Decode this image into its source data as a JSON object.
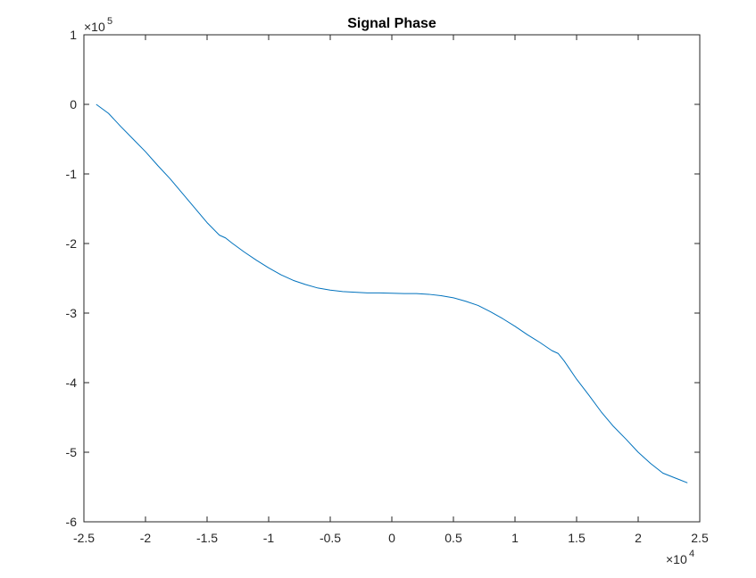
{
  "chart_data": {
    "type": "line",
    "title": "Signal Phase",
    "xlabel": "",
    "ylabel": "",
    "x_multiplier": {
      "base": "×10",
      "exponent": "4"
    },
    "y_multiplier": {
      "base": "×10",
      "exponent": "5"
    },
    "xlim": [
      -2.5,
      2.5
    ],
    "ylim": [
      -6,
      1
    ],
    "xticks": [
      -2.5,
      -2,
      -1.5,
      -1,
      -0.5,
      0,
      0.5,
      1,
      1.5,
      2,
      2.5
    ],
    "xtick_labels": [
      "-2.5",
      "-2",
      "-1.5",
      "-1",
      "-0.5",
      "0",
      "0.5",
      "1",
      "1.5",
      "2",
      "2.5"
    ],
    "yticks": [
      1,
      0,
      -1,
      -2,
      -3,
      -4,
      -5,
      -6
    ],
    "ytick_labels": [
      "1",
      "0",
      "-1",
      "-2",
      "-3",
      "-4",
      "-5",
      "-6"
    ],
    "grid": false,
    "line_color": "#0072BD",
    "series": [
      {
        "x": [
          -2.4,
          -2.3,
          -2.2,
          -2.1,
          -2.0,
          -1.9,
          -1.8,
          -1.7,
          -1.6,
          -1.5,
          -1.4,
          -1.35,
          -1.3,
          -1.2,
          -1.1,
          -1.0,
          -0.9,
          -0.8,
          -0.7,
          -0.6,
          -0.5,
          -0.4,
          -0.3,
          -0.2,
          -0.1,
          0.0,
          0.1,
          0.2,
          0.3,
          0.4,
          0.5,
          0.6,
          0.7,
          0.8,
          0.9,
          1.0,
          1.1,
          1.2,
          1.3,
          1.35,
          1.4,
          1.5,
          1.6,
          1.7,
          1.8,
          1.9,
          2.0,
          2.1,
          2.2,
          2.3,
          2.4
        ],
        "y": [
          0.0,
          -0.13,
          -0.32,
          -0.5,
          -0.68,
          -0.88,
          -1.07,
          -1.28,
          -1.49,
          -1.7,
          -1.88,
          -1.92,
          -1.99,
          -2.12,
          -2.24,
          -2.35,
          -2.45,
          -2.53,
          -2.59,
          -2.64,
          -2.67,
          -2.69,
          -2.7,
          -2.71,
          -2.71,
          -2.715,
          -2.72,
          -2.72,
          -2.73,
          -2.75,
          -2.78,
          -2.83,
          -2.89,
          -2.98,
          -3.08,
          -3.19,
          -3.31,
          -3.42,
          -3.54,
          -3.58,
          -3.69,
          -3.95,
          -4.18,
          -4.42,
          -4.63,
          -4.81,
          -5.0,
          -5.16,
          -5.3,
          -5.37,
          -5.44
        ]
      }
    ]
  }
}
